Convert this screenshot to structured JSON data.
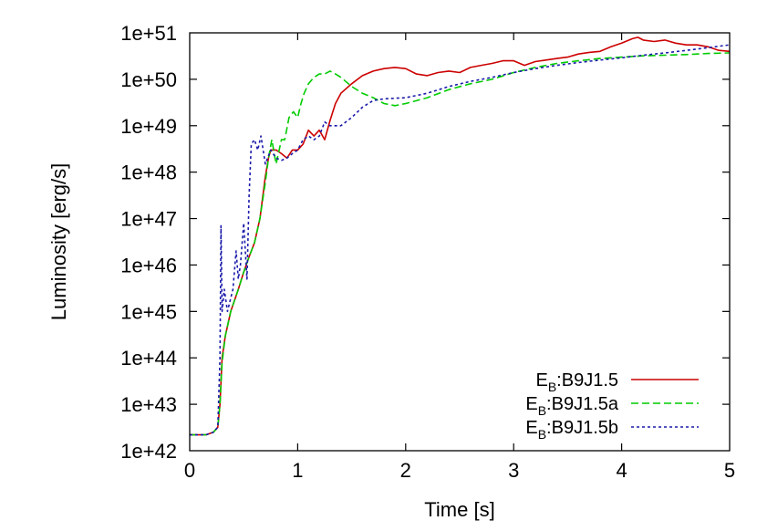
{
  "chart_data": {
    "type": "line",
    "title": "",
    "xlabel": "Time [s]",
    "ylabel": "Luminosity [erg/s]",
    "xlim": [
      0,
      5
    ],
    "ylim_log10": [
      42,
      51
    ],
    "yscale": "log",
    "grid": false,
    "legend_placement": "bottom-right",
    "x_ticks": [
      0,
      1,
      2,
      3,
      4,
      5
    ],
    "x_tick_labels": [
      "0",
      "1",
      "2",
      "3",
      "4",
      "5"
    ],
    "y_ticks_log10": [
      42,
      43,
      44,
      45,
      46,
      47,
      48,
      49,
      50,
      51
    ],
    "y_tick_labels": [
      "1e+42",
      "1e+43",
      "1e+44",
      "1e+45",
      "1e+46",
      "1e+47",
      "1e+48",
      "1e+49",
      "1e+50",
      "1e+51"
    ],
    "series": [
      {
        "name": "E_B:B9J1.5",
        "legend_main": "E",
        "legend_sub": "B",
        "legend_rest": ":B9J1.5",
        "color": "#cc0000",
        "dash": "solid",
        "x": [
          0.0,
          0.15,
          0.22,
          0.26,
          0.28,
          0.3,
          0.33,
          0.38,
          0.45,
          0.5,
          0.55,
          0.6,
          0.65,
          0.7,
          0.73,
          0.75,
          0.8,
          0.85,
          0.9,
          0.95,
          1.0,
          1.05,
          1.1,
          1.15,
          1.2,
          1.25,
          1.3,
          1.35,
          1.4,
          1.5,
          1.6,
          1.7,
          1.8,
          1.9,
          2.0,
          2.1,
          2.2,
          2.3,
          2.4,
          2.5,
          2.6,
          2.7,
          2.8,
          2.9,
          3.0,
          3.1,
          3.2,
          3.3,
          3.4,
          3.5,
          3.6,
          3.7,
          3.8,
          3.9,
          4.0,
          4.1,
          4.15,
          4.2,
          4.3,
          4.4,
          4.5,
          4.6,
          4.7,
          4.8,
          4.9,
          5.0
        ],
        "y": [
          "2.2e42",
          "2.2e42",
          "2.5e42",
          "3.2e42",
          "1e43",
          "1e44",
          "3e44",
          "1e45",
          "3e45",
          "7e45",
          "1.5e46",
          "3e46",
          "1e47",
          "8e47",
          "2e48",
          "3e48",
          "3e48",
          "2.5e48",
          "2e48",
          "3e48",
          "3e48",
          "4e48",
          "8e48",
          "6e48",
          "8e48",
          "5e48",
          "1.3e49",
          "3e49",
          "5e49",
          "8e49",
          "1.2e50",
          "1.5e50",
          "1.7e50",
          "1.8e50",
          "1.7e50",
          "1.3e50",
          "1.2e50",
          "1.4e50",
          "1.5e50",
          "1.4e50",
          "1.8e50",
          "2e50",
          "2.2e50",
          "2.5e50",
          "2.5e50",
          "2e50",
          "2.4e50",
          "2.6e50",
          "2.8e50",
          "3e50",
          "3.5e50",
          "3.8e50",
          "4e50",
          "5e50",
          "6e50",
          "7.5e50",
          "8e50",
          "7e50",
          "6.5e50",
          "7e50",
          "6e50",
          "5.5e50",
          "5.5e50",
          "5e50",
          "4.2e50",
          "4e50"
        ]
      },
      {
        "name": "E_B:B9J1.5a",
        "legend_main": "E",
        "legend_sub": "B",
        "legend_rest": ":B9J1.5a",
        "color": "#00cc00",
        "dash": "8,4",
        "x": [
          0.0,
          0.15,
          0.22,
          0.26,
          0.28,
          0.3,
          0.33,
          0.38,
          0.45,
          0.5,
          0.55,
          0.6,
          0.65,
          0.7,
          0.73,
          0.76,
          0.8,
          0.85,
          0.88,
          0.92,
          0.96,
          1.0,
          1.03,
          1.06,
          1.1,
          1.15,
          1.2,
          1.25,
          1.3,
          1.35,
          1.4,
          1.5,
          1.6,
          1.7,
          1.8,
          1.9,
          2.0,
          2.2,
          2.4,
          2.6,
          2.8,
          3.0,
          3.2,
          3.4,
          3.6,
          3.8,
          4.0,
          4.2,
          4.4,
          4.6,
          4.8,
          5.0
        ],
        "y": [
          "2.2e42",
          "2.2e42",
          "2.5e42",
          "3.2e42",
          "1e43",
          "8e43",
          "3e44",
          "1e45",
          "3e45",
          "7e45",
          "1.5e46",
          "3e46",
          "1e47",
          "6e47",
          "2e48",
          "5e48",
          "1.5e48",
          "5e48",
          "5e48",
          "1.5e49",
          "2e49",
          "1.5e49",
          "3e49",
          "5e49",
          "8e49",
          "1.1e50",
          "1.3e50",
          "1.3e50",
          "1.5e50",
          "1.3e50",
          "1.1e50",
          "7e49",
          "5e49",
          "4e49",
          "3e49",
          "2.7e49",
          "3e49",
          "4e49",
          "6e49",
          "8e49",
          "1e50",
          "1.4e50",
          "1.8e50",
          "2.2e50",
          "2.5e50",
          "2.8e50",
          "3e50",
          "3.2e50",
          "3.3e50",
          "3.4e50",
          "3.6e50",
          "3.7e50"
        ]
      },
      {
        "name": "E_B:B9J1.5b",
        "legend_main": "E",
        "legend_sub": "B",
        "legend_rest": ":B9J1.5b",
        "color": "#1a1aaa",
        "dash": "3,3",
        "x": [
          0.0,
          0.15,
          0.22,
          0.26,
          0.28,
          0.29,
          0.3,
          0.32,
          0.35,
          0.4,
          0.43,
          0.45,
          0.47,
          0.5,
          0.53,
          0.55,
          0.57,
          0.6,
          0.63,
          0.66,
          0.7,
          0.75,
          0.8,
          0.85,
          0.9,
          0.95,
          1.0,
          1.05,
          1.1,
          1.15,
          1.2,
          1.25,
          1.3,
          1.4,
          1.5,
          1.6,
          1.7,
          1.8,
          2.0,
          2.2,
          2.4,
          2.6,
          2.8,
          3.0,
          3.2,
          3.4,
          3.6,
          3.8,
          4.0,
          4.2,
          4.4,
          4.6,
          4.8,
          5.0
        ],
        "y": [
          "2.2e42",
          "2.2e42",
          "2.5e42",
          "3.2e42",
          "1e44",
          "7e46",
          "1e45",
          "3e45",
          "1e45",
          "3e45",
          "2e46",
          "5e45",
          "1e46",
          "8e46",
          "5e45",
          "3e47",
          "4e48",
          "5e48",
          "3e48",
          "6e48",
          "1.5e48",
          "3e48",
          "2e48",
          "1.8e48",
          "2e48",
          "2.5e48",
          "3e48",
          "5e48",
          "6e48",
          "5e48",
          "6e48",
          "1.2e49",
          "1e49",
          "1e49",
          "1.5e49",
          "2.5e49",
          "3.5e49",
          "3.8e49",
          "4e49",
          "5e49",
          "7e49",
          "9e49",
          "1.1e50",
          "1.4e50",
          "1.7e50",
          "2e50",
          "2.3e50",
          "2.6e50",
          "2.9e50",
          "3.3e50",
          "3.7e50",
          "4.2e50",
          "4.8e50",
          "5.5e50"
        ]
      }
    ]
  }
}
